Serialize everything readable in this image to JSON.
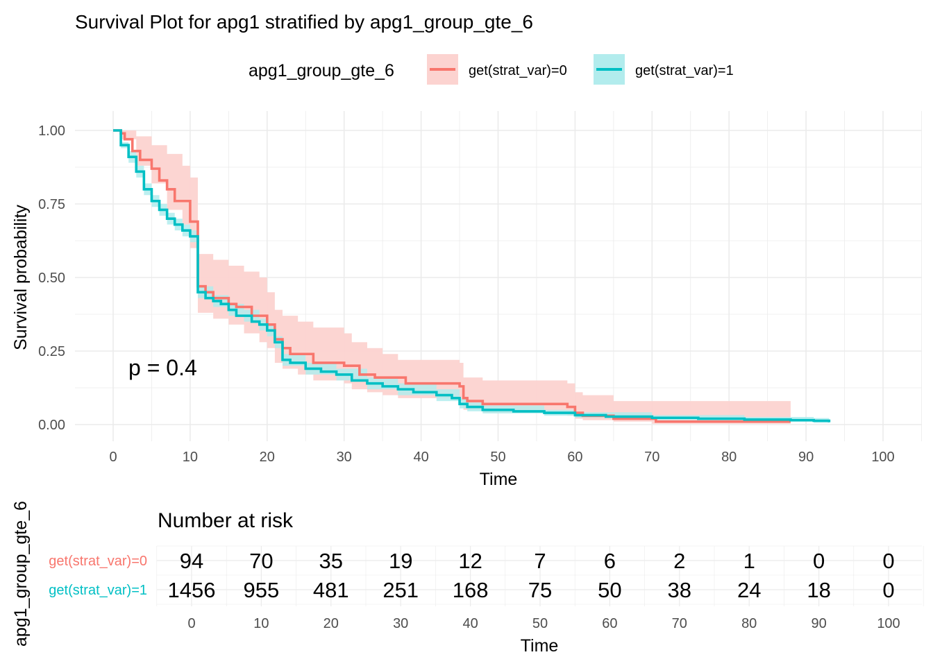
{
  "title": "Survival Plot for apg1 stratified by apg1_group_gte_6",
  "legend": {
    "title": "apg1_group_gte_6",
    "placement": "top",
    "items": [
      {
        "label": "get(strat_var)=0",
        "color": "#F8766D",
        "fill": "#FCD3D0"
      },
      {
        "label": "get(strat_var)=1",
        "color": "#00BFC4",
        "fill": "#B2ECED"
      }
    ]
  },
  "chart_data": [
    {
      "type": "line",
      "subtype": "kaplan-meier step",
      "xlabel": "Time",
      "ylabel": "Survival probability",
      "xlim": [
        0,
        100
      ],
      "ylim": [
        0,
        1
      ],
      "x_ticks": [
        "0",
        "10",
        "20",
        "30",
        "40",
        "50",
        "60",
        "70",
        "80",
        "90",
        "100"
      ],
      "y_ticks": [
        "0.00",
        "0.25",
        "0.50",
        "0.75",
        "1.00"
      ],
      "grid": true,
      "annotation": "p = 0.4",
      "series": [
        {
          "name": "get(strat_var)=0",
          "color": "#F8766D",
          "points": [
            [
              0,
              1.0
            ],
            [
              1,
              0.99
            ],
            [
              1.5,
              0.97
            ],
            [
              2.5,
              0.93
            ],
            [
              3.5,
              0.9
            ],
            [
              5,
              0.87
            ],
            [
              6,
              0.83
            ],
            [
              7,
              0.8
            ],
            [
              8,
              0.76
            ],
            [
              10,
              0.69
            ],
            [
              11,
              0.47
            ],
            [
              12,
              0.45
            ],
            [
              13,
              0.43
            ],
            [
              15,
              0.41
            ],
            [
              16,
              0.4
            ],
            [
              18,
              0.37
            ],
            [
              20,
              0.34
            ],
            [
              21,
              0.29
            ],
            [
              22,
              0.26
            ],
            [
              23,
              0.24
            ],
            [
              26,
              0.21
            ],
            [
              30,
              0.2
            ],
            [
              32,
              0.17
            ],
            [
              34,
              0.16
            ],
            [
              38,
              0.14
            ],
            [
              45,
              0.13
            ],
            [
              45.5,
              0.09
            ],
            [
              46,
              0.08
            ],
            [
              48,
              0.07
            ],
            [
              59,
              0.06
            ],
            [
              60,
              0.04
            ],
            [
              61,
              0.03
            ],
            [
              65,
              0.02
            ],
            [
              70.5,
              0.01
            ],
            [
              88,
              0.01
            ]
          ],
          "ci_upper": [
            [
              0,
              1.0
            ],
            [
              1,
              1.0
            ],
            [
              3,
              0.98
            ],
            [
              5,
              0.95
            ],
            [
              7,
              0.92
            ],
            [
              9,
              0.88
            ],
            [
              10,
              0.84
            ],
            [
              11,
              0.58
            ],
            [
              13,
              0.56
            ],
            [
              15,
              0.54
            ],
            [
              17,
              0.52
            ],
            [
              19,
              0.5
            ],
            [
              20,
              0.45
            ],
            [
              21,
              0.39
            ],
            [
              22,
              0.37
            ],
            [
              24,
              0.35
            ],
            [
              26,
              0.33
            ],
            [
              30,
              0.31
            ],
            [
              31,
              0.28
            ],
            [
              33,
              0.26
            ],
            [
              35,
              0.24
            ],
            [
              37,
              0.22
            ],
            [
              45,
              0.21
            ],
            [
              45.5,
              0.16
            ],
            [
              48,
              0.15
            ],
            [
              59,
              0.14
            ],
            [
              60,
              0.11
            ],
            [
              61,
              0.1
            ],
            [
              65,
              0.08
            ],
            [
              70,
              0.08
            ],
            [
              88,
              0.08
            ]
          ],
          "ci_lower": [
            [
              0,
              1.0
            ],
            [
              1,
              0.97
            ],
            [
              3,
              0.88
            ],
            [
              5,
              0.82
            ],
            [
              7,
              0.73
            ],
            [
              9,
              0.68
            ],
            [
              10,
              0.6
            ],
            [
              11,
              0.38
            ],
            [
              13,
              0.36
            ],
            [
              15,
              0.34
            ],
            [
              17,
              0.31
            ],
            [
              19,
              0.28
            ],
            [
              20,
              0.26
            ],
            [
              21,
              0.21
            ],
            [
              22,
              0.19
            ],
            [
              24,
              0.17
            ],
            [
              26,
              0.15
            ],
            [
              30,
              0.14
            ],
            [
              31,
              0.12
            ],
            [
              33,
              0.11
            ],
            [
              35,
              0.1
            ],
            [
              37,
              0.09
            ],
            [
              45,
              0.08
            ],
            [
              45.5,
              0.05
            ],
            [
              48,
              0.04
            ],
            [
              59,
              0.03
            ],
            [
              60,
              0.02
            ],
            [
              61,
              0.015
            ],
            [
              65,
              0.01
            ],
            [
              70,
              0.003
            ],
            [
              88,
              0.003
            ]
          ]
        },
        {
          "name": "get(strat_var)=1",
          "color": "#00BFC4",
          "points": [
            [
              0,
              1.0
            ],
            [
              1,
              0.95
            ],
            [
              2,
              0.91
            ],
            [
              3,
              0.86
            ],
            [
              4,
              0.8
            ],
            [
              5,
              0.76
            ],
            [
              6,
              0.73
            ],
            [
              7,
              0.7
            ],
            [
              8,
              0.68
            ],
            [
              9,
              0.66
            ],
            [
              10,
              0.64
            ],
            [
              11,
              0.45
            ],
            [
              12,
              0.43
            ],
            [
              13,
              0.42
            ],
            [
              14,
              0.41
            ],
            [
              15,
              0.39
            ],
            [
              16,
              0.37
            ],
            [
              18,
              0.35
            ],
            [
              19,
              0.34
            ],
            [
              20,
              0.32
            ],
            [
              21,
              0.28
            ],
            [
              22,
              0.22
            ],
            [
              23,
              0.21
            ],
            [
              25,
              0.19
            ],
            [
              27,
              0.18
            ],
            [
              29,
              0.17
            ],
            [
              31,
              0.15
            ],
            [
              33,
              0.14
            ],
            [
              35,
              0.13
            ],
            [
              37,
              0.12
            ],
            [
              39,
              0.11
            ],
            [
              42,
              0.1
            ],
            [
              44,
              0.09
            ],
            [
              45,
              0.07
            ],
            [
              46,
              0.06
            ],
            [
              48,
              0.05
            ],
            [
              52,
              0.045
            ],
            [
              56,
              0.04
            ],
            [
              60,
              0.032
            ],
            [
              64,
              0.027
            ],
            [
              70,
              0.023
            ],
            [
              76,
              0.02
            ],
            [
              82,
              0.017
            ],
            [
              88,
              0.015
            ],
            [
              91,
              0.013
            ],
            [
              93,
              0.008
            ]
          ],
          "ci_upper": [
            [
              0,
              1.0
            ],
            [
              1,
              0.96
            ],
            [
              2,
              0.93
            ],
            [
              3,
              0.88
            ],
            [
              4,
              0.82
            ],
            [
              5,
              0.78
            ],
            [
              6,
              0.75
            ],
            [
              7,
              0.72
            ],
            [
              8,
              0.7
            ],
            [
              9,
              0.68
            ],
            [
              10,
              0.66
            ],
            [
              11,
              0.47
            ],
            [
              13,
              0.44
            ],
            [
              15,
              0.41
            ],
            [
              17,
              0.39
            ],
            [
              19,
              0.36
            ],
            [
              20,
              0.34
            ],
            [
              21,
              0.3
            ],
            [
              22,
              0.24
            ],
            [
              25,
              0.21
            ],
            [
              29,
              0.19
            ],
            [
              33,
              0.16
            ],
            [
              37,
              0.14
            ],
            [
              42,
              0.12
            ],
            [
              45,
              0.09
            ],
            [
              46,
              0.075
            ],
            [
              48,
              0.065
            ],
            [
              56,
              0.05
            ],
            [
              60,
              0.042
            ],
            [
              70,
              0.032
            ],
            [
              82,
              0.026
            ],
            [
              91,
              0.022
            ],
            [
              93,
              0.016
            ]
          ],
          "ci_lower": [
            [
              0,
              1.0
            ],
            [
              1,
              0.94
            ],
            [
              2,
              0.89
            ],
            [
              3,
              0.84
            ],
            [
              4,
              0.78
            ],
            [
              5,
              0.74
            ],
            [
              6,
              0.71
            ],
            [
              7,
              0.68
            ],
            [
              8,
              0.66
            ],
            [
              9,
              0.64
            ],
            [
              10,
              0.62
            ],
            [
              11,
              0.43
            ],
            [
              13,
              0.4
            ],
            [
              15,
              0.37
            ],
            [
              17,
              0.35
            ],
            [
              19,
              0.32
            ],
            [
              20,
              0.3
            ],
            [
              21,
              0.26
            ],
            [
              22,
              0.2
            ],
            [
              25,
              0.17
            ],
            [
              29,
              0.15
            ],
            [
              33,
              0.12
            ],
            [
              37,
              0.1
            ],
            [
              42,
              0.08
            ],
            [
              45,
              0.055
            ],
            [
              46,
              0.045
            ],
            [
              48,
              0.038
            ],
            [
              56,
              0.03
            ],
            [
              60,
              0.024
            ],
            [
              70,
              0.015
            ],
            [
              82,
              0.01
            ],
            [
              91,
              0.006
            ],
            [
              93,
              0.002
            ]
          ]
        }
      ]
    },
    {
      "type": "table",
      "title": "Number at risk",
      "xlabel": "Time",
      "ylabel": "apg1_group_gte_6",
      "x_ticks": [
        "0",
        "10",
        "20",
        "30",
        "40",
        "50",
        "60",
        "70",
        "80",
        "90",
        "100"
      ],
      "rows": [
        {
          "name": "get(strat_var)=0",
          "color": "#F8766D",
          "values": [
            "94",
            "70",
            "35",
            "19",
            "12",
            "7",
            "6",
            "2",
            "1",
            "0",
            "0"
          ]
        },
        {
          "name": "get(strat_var)=1",
          "color": "#00BFC4",
          "values": [
            "1456",
            "955",
            "481",
            "251",
            "168",
            "75",
            "50",
            "38",
            "24",
            "18",
            "0"
          ]
        }
      ]
    }
  ]
}
